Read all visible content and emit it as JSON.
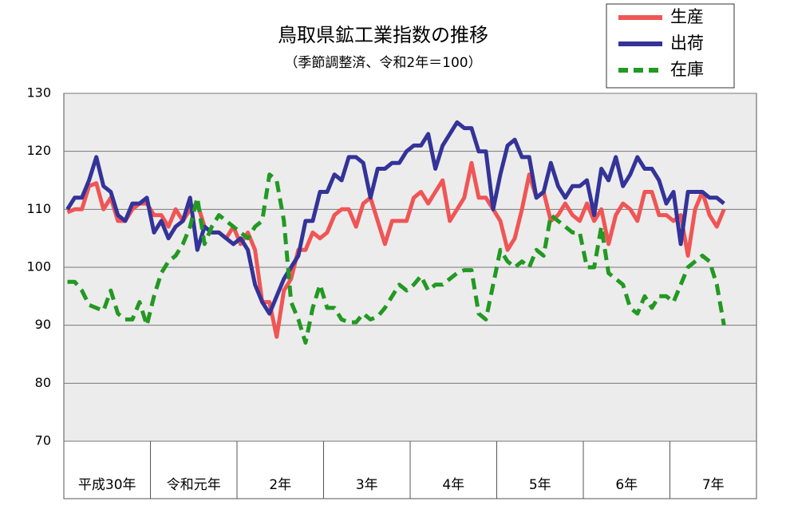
{
  "chart_data": {
    "type": "line",
    "title": "鳥取県鉱工業指数の推移",
    "subtitle": "（季節調整済、令和2年＝100）",
    "ylim": [
      70,
      130
    ],
    "yticks": [
      70,
      80,
      90,
      100,
      110,
      120,
      130
    ],
    "grid": true,
    "legend": "top-right",
    "categories": [
      "平成30年",
      null,
      null,
      null,
      null,
      null,
      null,
      null,
      null,
      null,
      null,
      null,
      "令和元年",
      null,
      null,
      null,
      null,
      null,
      null,
      null,
      null,
      null,
      null,
      null,
      "2年",
      null,
      null,
      null,
      null,
      null,
      null,
      null,
      null,
      null,
      null,
      null,
      "3年",
      null,
      null,
      null,
      null,
      null,
      null,
      null,
      null,
      null,
      null,
      null,
      "4年",
      null,
      null,
      null,
      null,
      null,
      null,
      null,
      null,
      null,
      null,
      null,
      "5年",
      null,
      null,
      null,
      null,
      null,
      null,
      null,
      null,
      null,
      null,
      null,
      "6年",
      null,
      null,
      null,
      null,
      null,
      null,
      null,
      null,
      null,
      null,
      null,
      "7年",
      null,
      null,
      null,
      null,
      null,
      null,
      null,
      null,
      null,
      null,
      null
    ],
    "series": [
      {
        "name": "生産",
        "color": "#f05555",
        "dash": false,
        "values": [
          109.5,
          110,
          110,
          114,
          114.5,
          110,
          112,
          108,
          108,
          110,
          111,
          111,
          109,
          109,
          107,
          110,
          108,
          110,
          111,
          107,
          106,
          106,
          105,
          107,
          104,
          106,
          103,
          94,
          94,
          88,
          96,
          98,
          103,
          103,
          106,
          105,
          106,
          109,
          110,
          110,
          107,
          111,
          112,
          108,
          104,
          108,
          108,
          108,
          112,
          113,
          111,
          113,
          115,
          108,
          110,
          112,
          118,
          112,
          112,
          110,
          108,
          103,
          105,
          110,
          116,
          112,
          113,
          108,
          109,
          111,
          109,
          108,
          111,
          108,
          110,
          104,
          109,
          111,
          110,
          108,
          113,
          113,
          109,
          109,
          108,
          109,
          102,
          110,
          113,
          109,
          107,
          110,
          null,
          null,
          null,
          null
        ]
      },
      {
        "name": "出荷",
        "color": "#333399",
        "dash": false,
        "values": [
          110,
          112,
          112,
          115,
          119,
          114,
          113,
          109,
          108,
          111,
          111,
          112,
          106,
          108,
          105,
          107,
          108,
          112,
          103,
          107,
          106,
          106,
          105,
          104,
          105,
          103,
          97,
          94,
          92,
          95,
          98,
          100,
          102,
          108,
          108,
          113,
          113,
          116,
          115,
          119,
          119,
          118,
          112,
          117,
          117,
          118,
          118,
          120,
          121,
          121,
          123,
          117,
          121,
          123,
          125,
          124,
          124,
          120,
          120,
          110,
          116,
          121,
          122,
          119,
          119,
          112,
          113,
          118,
          114,
          112,
          114,
          114,
          115,
          109,
          117,
          115,
          119,
          114,
          116,
          119,
          117,
          117,
          115,
          111,
          113,
          104,
          113,
          113,
          113,
          112,
          112,
          111,
          null,
          null,
          null,
          null
        ]
      },
      {
        "name": "在庫",
        "color": "#229922",
        "dash": true,
        "values": [
          97.5,
          97.5,
          96,
          93.5,
          93,
          92.5,
          96,
          92,
          91,
          91,
          94,
          90,
          95,
          99,
          101,
          102,
          104,
          107,
          112,
          104,
          107,
          109,
          108,
          107,
          106,
          105,
          107,
          108,
          116,
          115,
          108,
          94,
          91,
          87,
          93,
          97,
          93,
          93,
          91,
          90.5,
          90.5,
          92,
          91,
          91.5,
          93,
          95,
          97,
          96,
          97,
          98.5,
          96,
          97,
          97,
          98,
          99,
          99.5,
          99.5,
          92,
          91,
          97,
          103,
          101,
          100,
          101,
          100,
          103,
          102,
          109,
          108,
          107,
          106,
          106,
          100,
          100,
          107,
          99,
          98,
          97,
          93,
          92,
          95,
          93,
          95,
          95,
          94,
          97,
          100,
          101,
          102,
          101,
          97,
          90,
          null,
          null,
          null,
          null
        ]
      }
    ]
  }
}
